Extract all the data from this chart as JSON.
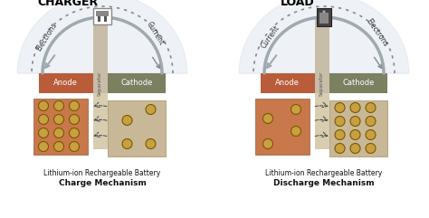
{
  "left_title": "CHARGER",
  "right_title": "LOAD",
  "left_caption1": "Lithium-ion Rechargeable Battery",
  "left_caption2": "Charge Mechanism",
  "right_caption1": "Lithium-ion Rechargeable Battery",
  "right_caption2": "Discharge Mechanism",
  "anode_color": "#b85c3a",
  "cathode_color": "#7a8060",
  "anode_bot_color": "#c8784a",
  "cathode_bot_color": "#c8b898",
  "separator_color": "#d8cdb0",
  "separator_top_color": "#c8bda8",
  "ion_face": "#c8a040",
  "ion_edge": "#7a5800",
  "anode_label": "Anode",
  "cathode_label": "Cathode",
  "separator_label": "Separator",
  "left_elec_label": "Electrons",
  "left_curr_label": "Current",
  "right_curr_label": "Current",
  "right_elec_label": "Electrons",
  "arc_inner_color": "#a0a8b0",
  "arc_outer_color": "#888890",
  "bg_gradient_color": "#d0dce8",
  "figsize": [
    4.74,
    2.41
  ],
  "dpi": 100
}
